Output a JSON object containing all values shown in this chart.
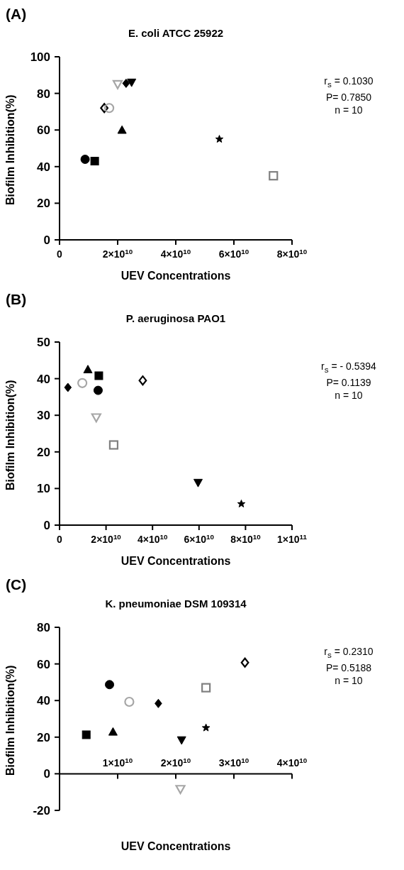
{
  "chart_data": [
    {
      "type": "scatter",
      "title": "E. coli ATCC 25922",
      "xlabel": "UEV Concentrations",
      "ylabel": "Biofilm Inhibition(%)",
      "xlim": [
        0,
        80000000000.0
      ],
      "xticks": [
        0,
        {
          "value": 20000000000.0,
          "label": "2×10$^{10}$"
        },
        {
          "value": 40000000000.0,
          "label": "4×10$^{10}$"
        },
        {
          "value": 60000000000.0,
          "label": "6×10$^{10}$"
        },
        {
          "value": 80000000000.0,
          "label": "8×10$^{10}$"
        }
      ],
      "ylim": [
        0,
        100
      ],
      "yticks": [
        0,
        20,
        40,
        60,
        80,
        100
      ],
      "grid": false,
      "legend": false,
      "annotations": [
        "(A)",
        "r$_{s}$ = 0.1030",
        "P= 0.7850",
        "n = 10"
      ],
      "series": [
        {
          "marker": "circle",
          "color": "#000000",
          "x": [
            8800000000.0
          ],
          "values": [
            44
          ]
        },
        {
          "marker": "square",
          "color": "#000000",
          "x": [
            12100000000.0
          ],
          "values": [
            43
          ]
        },
        {
          "marker": "diamond-open",
          "color": "#000000",
          "x": [
            15400000000.0
          ],
          "values": [
            72
          ]
        },
        {
          "marker": "circle-open",
          "color": "#a6a6a6",
          "x": [
            17100000000.0
          ],
          "values": [
            72
          ]
        },
        {
          "marker": "triangle-down-open",
          "color": "#a6a6a6",
          "x": [
            20000000000.0
          ],
          "values": [
            85
          ]
        },
        {
          "marker": "diamond",
          "color": "#000000",
          "x": [
            22900000000.0
          ],
          "values": [
            85.5
          ]
        },
        {
          "marker": "triangle-down",
          "color": "#000000",
          "x": [
            24800000000.0
          ],
          "values": [
            86
          ]
        },
        {
          "marker": "triangle",
          "color": "#000000",
          "x": [
            21500000000.0
          ],
          "values": [
            60
          ]
        },
        {
          "marker": "star",
          "color": "#000000",
          "x": [
            55000000000.0
          ],
          "values": [
            55
          ]
        },
        {
          "marker": "square-open",
          "color": "#808080",
          "x": [
            73600000000.0
          ],
          "values": [
            35
          ]
        }
      ]
    },
    {
      "type": "scatter",
      "title": "P. aeruginosa PAO1",
      "xlabel": "UEV Concentrations",
      "ylabel": "Biofilm Inhibition(%)",
      "xlim": [
        0,
        100000000000.0
      ],
      "xticks": [
        0,
        {
          "value": 20000000000.0,
          "label": "2×10$^{10}$"
        },
        {
          "value": 40000000000.0,
          "label": "4×10$^{10}$"
        },
        {
          "value": 60000000000.0,
          "label": "6×10$^{10}$"
        },
        {
          "value": 80000000000.0,
          "label": "8×10$^{10}$"
        },
        {
          "value": 100000000000.0,
          "label": "1×10$^{11}$"
        }
      ],
      "ylim": [
        0,
        50
      ],
      "yticks": [
        0,
        10,
        20,
        30,
        40,
        50
      ],
      "grid": false,
      "legend": false,
      "annotations": [
        "(B)",
        "r$_{s}$ = - 0.5394",
        "P= 0.1139",
        "n = 10"
      ],
      "series": [
        {
          "marker": "diamond",
          "color": "#000000",
          "x": [
            3600000000.0
          ],
          "values": [
            37.6
          ]
        },
        {
          "marker": "circle-open",
          "color": "#a6a6a6",
          "x": [
            9800000000.0
          ],
          "values": [
            38.8
          ]
        },
        {
          "marker": "triangle",
          "color": "#000000",
          "x": [
            12200000000.0
          ],
          "values": [
            42.5
          ]
        },
        {
          "marker": "square",
          "color": "#000000",
          "x": [
            16900000000.0
          ],
          "values": [
            40.8
          ]
        },
        {
          "marker": "circle",
          "color": "#000000",
          "x": [
            16600000000.0
          ],
          "values": [
            36.8
          ]
        },
        {
          "marker": "triangle-down-open",
          "color": "#a6a6a6",
          "x": [
            15800000000.0
          ],
          "values": [
            29.4
          ]
        },
        {
          "marker": "square-open",
          "color": "#808080",
          "x": [
            23300000000.0
          ],
          "values": [
            21.9
          ]
        },
        {
          "marker": "diamond-open",
          "color": "#000000",
          "x": [
            35800000000.0
          ],
          "values": [
            39.5
          ]
        },
        {
          "marker": "triangle-down",
          "color": "#000000",
          "x": [
            59600000000.0
          ],
          "values": [
            11.6
          ]
        },
        {
          "marker": "star",
          "color": "#000000",
          "x": [
            78200000000.0
          ],
          "values": [
            5.8
          ]
        }
      ]
    },
    {
      "type": "scatter",
      "title": "K. pneumoniae DSM 109314",
      "xlabel": "UEV Concentrations",
      "ylabel": "Biofilm Inhibition(%)",
      "xlim": [
        0,
        40000000000.0
      ],
      "xticks": [
        {
          "value": 10000000000.0,
          "label": "1×10$^{10}$"
        },
        {
          "value": 20000000000.0,
          "label": "2×10$^{10}$"
        },
        {
          "value": 30000000000.0,
          "label": "3×10$^{10}$"
        },
        {
          "value": 40000000000.0,
          "label": "4×10$^{10}$"
        }
      ],
      "ylim": [
        -20,
        80
      ],
      "yticks": [
        -20,
        0,
        20,
        40,
        60,
        80
      ],
      "grid": false,
      "legend": false,
      "annotations": [
        "(C)",
        "r$_{s}$ = 0.2310",
        "P= 0.5188",
        "n = 10"
      ],
      "series": [
        {
          "marker": "square",
          "color": "#000000",
          "x": [
            4600000000.0
          ],
          "values": [
            21.3
          ]
        },
        {
          "marker": "circle",
          "color": "#000000",
          "x": [
            8600000000.0
          ],
          "values": [
            48.7
          ]
        },
        {
          "marker": "triangle",
          "color": "#000000",
          "x": [
            9200000000.0
          ],
          "values": [
            22.9
          ]
        },
        {
          "marker": "circle-open",
          "color": "#a6a6a6",
          "x": [
            12000000000.0
          ],
          "values": [
            39.3
          ]
        },
        {
          "marker": "diamond",
          "color": "#000000",
          "x": [
            17000000000.0
          ],
          "values": [
            38.4
          ]
        },
        {
          "marker": "triangle-down",
          "color": "#000000",
          "x": [
            21000000000.0
          ],
          "values": [
            18.4
          ]
        },
        {
          "marker": "triangle-down-open",
          "color": "#a6a6a6",
          "x": [
            20800000000.0
          ],
          "values": [
            -8.4
          ]
        },
        {
          "marker": "square-open",
          "color": "#808080",
          "x": [
            25200000000.0
          ],
          "values": [
            47
          ]
        },
        {
          "marker": "star",
          "color": "#000000",
          "x": [
            25200000000.0
          ],
          "values": [
            25.1
          ]
        },
        {
          "marker": "diamond-open",
          "color": "#000000",
          "x": [
            31900000000.0
          ],
          "values": [
            60.7
          ]
        }
      ]
    }
  ]
}
